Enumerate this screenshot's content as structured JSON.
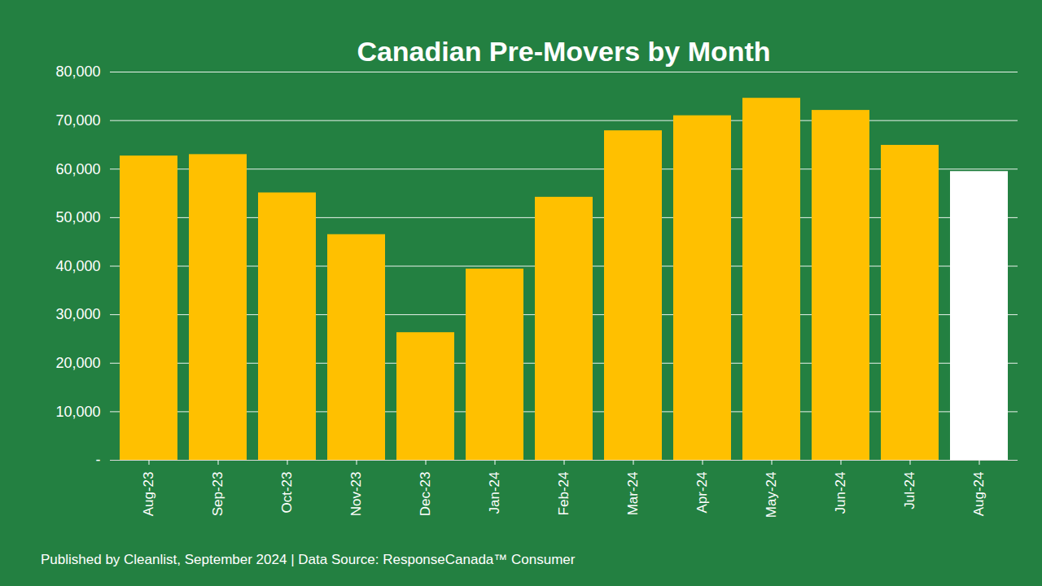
{
  "chart_data": {
    "type": "bar",
    "title": "Canadian Pre-Movers by Month",
    "caption": "Published by Cleanlist, September 2024 | Data Source: ResponseCanada™ Consumer",
    "categories": [
      "Aug-23",
      "Sep-23",
      "Oct-23",
      "Nov-23",
      "Dec-23",
      "Jan-24",
      "Feb-24",
      "Mar-24",
      "Apr-24",
      "May-24",
      "Jun-24",
      "Jul-24",
      "Aug-24"
    ],
    "values": [
      62700,
      63000,
      55100,
      46500,
      26300,
      39400,
      54200,
      67900,
      71000,
      74600,
      72100,
      64900,
      59500
    ],
    "colors": [
      "#ffc000",
      "#ffc000",
      "#ffc000",
      "#ffc000",
      "#ffc000",
      "#ffc000",
      "#ffc000",
      "#ffc000",
      "#ffc000",
      "#ffc000",
      "#ffc000",
      "#ffc000",
      "#ffffff"
    ],
    "ylim": [
      0,
      80000
    ],
    "yticks": [
      {
        "value": 0,
        "label": "-"
      },
      {
        "value": 10000,
        "label": "10,000"
      },
      {
        "value": 20000,
        "label": "20,000"
      },
      {
        "value": 30000,
        "label": "30,000"
      },
      {
        "value": 40000,
        "label": "40,000"
      },
      {
        "value": 50000,
        "label": "50,000"
      },
      {
        "value": 60000,
        "label": "60,000"
      },
      {
        "value": 70000,
        "label": "70,000"
      },
      {
        "value": 80000,
        "label": "80,000"
      }
    ],
    "grid": true
  }
}
